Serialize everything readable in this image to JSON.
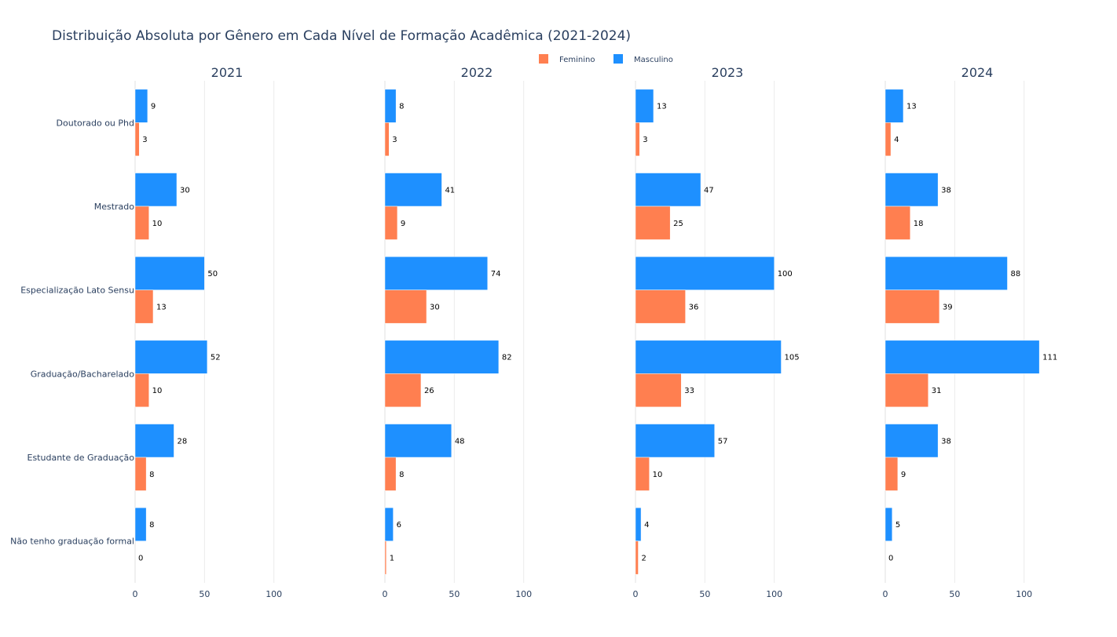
{
  "chart_data": {
    "type": "bar",
    "orientation": "horizontal",
    "title": "Distribuição Absoluta por Gênero em Cada Nível de Formação Acadêmica (2021-2024)",
    "categories": [
      "Doutorado ou Phd",
      "Mestrado",
      "Especialização Lato Sensu",
      "Graduação/Bacharelado",
      "Estudante de Graduação",
      "Não tenho graduação formal"
    ],
    "xlim": [
      0,
      140
    ],
    "xticks": [
      0,
      50,
      100
    ],
    "grid": true,
    "legend_position": "top-center",
    "series_meta": [
      {
        "name": "Feminino",
        "color": "#ff7f50"
      },
      {
        "name": "Masculino",
        "color": "#1e90ff"
      }
    ],
    "panels": [
      {
        "title": "2021",
        "series": [
          {
            "name": "Masculino",
            "values": [
              9,
              30,
              50,
              52,
              28,
              8
            ]
          },
          {
            "name": "Feminino",
            "values": [
              3,
              10,
              13,
              10,
              8,
              0
            ]
          }
        ]
      },
      {
        "title": "2022",
        "series": [
          {
            "name": "Masculino",
            "values": [
              8,
              41,
              74,
              82,
              48,
              6
            ]
          },
          {
            "name": "Feminino",
            "values": [
              3,
              9,
              30,
              26,
              8,
              1
            ]
          }
        ]
      },
      {
        "title": "2023",
        "series": [
          {
            "name": "Masculino",
            "values": [
              13,
              47,
              100,
              105,
              57,
              4
            ]
          },
          {
            "name": "Feminino",
            "values": [
              3,
              25,
              36,
              33,
              10,
              2
            ]
          }
        ]
      },
      {
        "title": "2024",
        "series": [
          {
            "name": "Masculino",
            "values": [
              13,
              38,
              88,
              111,
              38,
              5
            ]
          },
          {
            "name": "Feminino",
            "values": [
              4,
              18,
              39,
              31,
              9,
              0
            ]
          }
        ]
      }
    ]
  }
}
